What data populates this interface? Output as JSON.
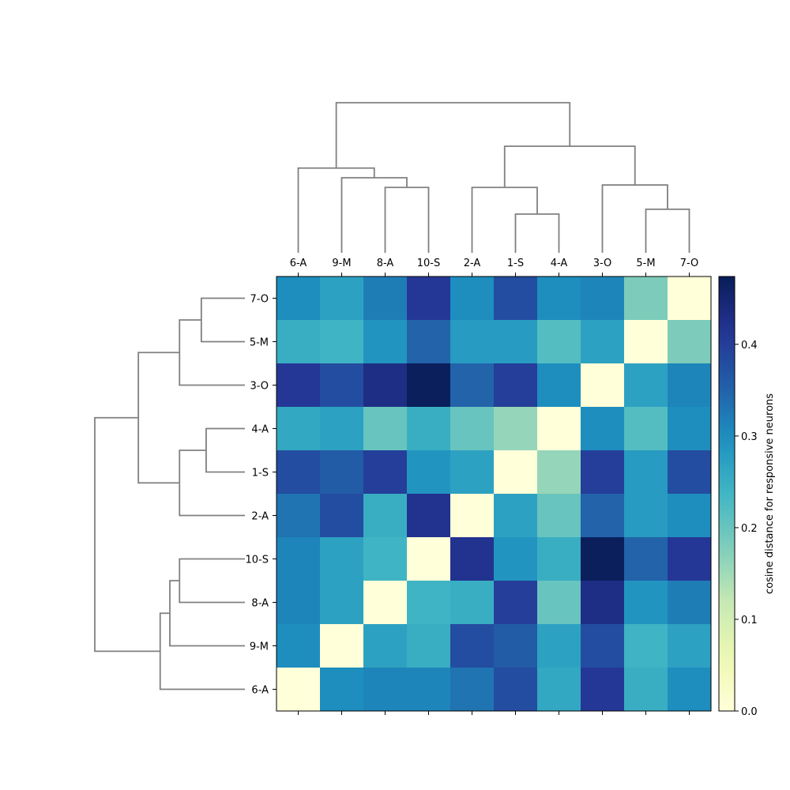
{
  "chart_data": {
    "type": "heatmap",
    "title": "",
    "colorbar": {
      "label": "cosine distance for responsive neurons",
      "min": 0.0,
      "max": 0.474,
      "ticks": [
        0.0,
        0.1,
        0.2,
        0.3,
        0.4
      ],
      "tick_labels": [
        "0.0",
        "0.1",
        "0.2",
        "0.3",
        "0.4"
      ],
      "colormap": "YlGnBu"
    },
    "columns": [
      "6-A",
      "9-M",
      "8-A",
      "10-S",
      "2-A",
      "1-S",
      "4-A",
      "3-O",
      "5-M",
      "7-O"
    ],
    "rows": [
      "7-O",
      "5-M",
      "3-O",
      "4-A",
      "1-S",
      "2-A",
      "10-S",
      "8-A",
      "9-M",
      "6-A"
    ],
    "values": [
      [
        0.3,
        0.27,
        0.32,
        0.41,
        0.3,
        0.38,
        0.3,
        0.31,
        0.18,
        0.0
      ],
      [
        0.25,
        0.24,
        0.29,
        0.35,
        0.28,
        0.28,
        0.22,
        0.27,
        0.0,
        0.18
      ],
      [
        0.41,
        0.38,
        0.43,
        0.47,
        0.35,
        0.4,
        0.3,
        0.0,
        0.27,
        0.31
      ],
      [
        0.26,
        0.27,
        0.2,
        0.25,
        0.2,
        0.16,
        0.0,
        0.3,
        0.22,
        0.3
      ],
      [
        0.38,
        0.36,
        0.4,
        0.29,
        0.27,
        0.0,
        0.16,
        0.4,
        0.28,
        0.38
      ],
      [
        0.33,
        0.38,
        0.25,
        0.42,
        0.0,
        0.27,
        0.2,
        0.35,
        0.28,
        0.3
      ],
      [
        0.31,
        0.27,
        0.24,
        0.0,
        0.42,
        0.29,
        0.25,
        0.47,
        0.35,
        0.41
      ],
      [
        0.31,
        0.27,
        0.0,
        0.24,
        0.25,
        0.4,
        0.2,
        0.43,
        0.29,
        0.32
      ],
      [
        0.3,
        0.0,
        0.27,
        0.25,
        0.38,
        0.36,
        0.27,
        0.38,
        0.24,
        0.27
      ],
      [
        0.0,
        0.3,
        0.31,
        0.31,
        0.33,
        0.38,
        0.26,
        0.41,
        0.25,
        0.3
      ]
    ],
    "col_dendrogram_links": [
      [
        2,
        3,
        0.27
      ],
      [
        1,
        10,
        0.31
      ],
      [
        0,
        11,
        0.35
      ],
      [
        5,
        6,
        0.16
      ],
      [
        4,
        13,
        0.27
      ],
      [
        8,
        9,
        0.18
      ],
      [
        7,
        15,
        0.28
      ],
      [
        14,
        16,
        0.44
      ],
      [
        12,
        17,
        0.62
      ]
    ],
    "row_dendrogram_links": [
      [
        0,
        1,
        0.18
      ],
      [
        2,
        10,
        0.27
      ],
      [
        3,
        4,
        0.16
      ],
      [
        5,
        12,
        0.27
      ],
      [
        11,
        13,
        0.44
      ],
      [
        6,
        7,
        0.27
      ],
      [
        8,
        15,
        0.31
      ],
      [
        9,
        16,
        0.35
      ],
      [
        14,
        17,
        0.62
      ]
    ],
    "grid": false
  }
}
